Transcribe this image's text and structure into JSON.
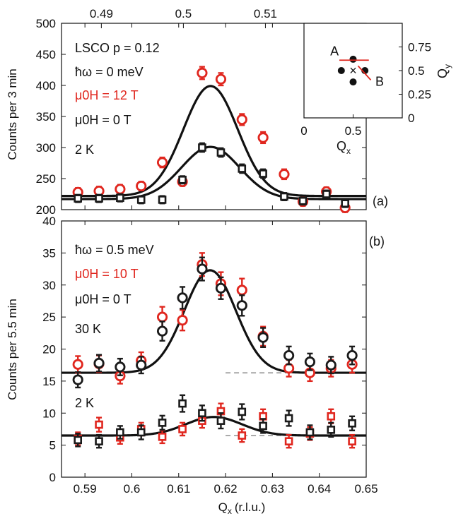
{
  "chart_data": [
    {
      "type": "scatter",
      "panel_label": "(a)",
      "ylabel": "Counts per 3 min",
      "ylim": [
        200,
        500
      ],
      "yticks": [
        200,
        250,
        300,
        350,
        400,
        450,
        500
      ],
      "xlim": [
        0.585,
        0.65
      ],
      "top_axis": {
        "ticks": [
          0.49,
          0.5,
          0.51
        ]
      },
      "annotations": [
        "LSCO p = 0.12",
        "ħω = 0 meV",
        "μ0H = 12 T",
        "μ0H = 0 T",
        "2 K"
      ],
      "series": [
        {
          "name": "μ0H = 12 T",
          "color": "#e0261e",
          "marker": "circle",
          "points": [
            {
              "x": 0.5885,
              "y": 228,
              "err": 7
            },
            {
              "x": 0.593,
              "y": 230,
              "err": 7
            },
            {
              "x": 0.5975,
              "y": 233,
              "err": 7
            },
            {
              "x": 0.602,
              "y": 238,
              "err": 7
            },
            {
              "x": 0.6065,
              "y": 276,
              "err": 8
            },
            {
              "x": 0.6108,
              "y": 245,
              "err": 7
            },
            {
              "x": 0.615,
              "y": 420,
              "err": 10
            },
            {
              "x": 0.619,
              "y": 410,
              "err": 10
            },
            {
              "x": 0.6235,
              "y": 345,
              "err": 9
            },
            {
              "x": 0.628,
              "y": 316,
              "err": 9
            },
            {
              "x": 0.6325,
              "y": 257,
              "err": 8
            },
            {
              "x": 0.6365,
              "y": 213,
              "err": 7
            },
            {
              "x": 0.6415,
              "y": 229,
              "err": 7
            },
            {
              "x": 0.6455,
              "y": 203,
              "err": 7
            }
          ],
          "fit": {
            "baseline": 222,
            "amplitude": 177,
            "center": 0.6168,
            "sigma": 0.0058
          }
        },
        {
          "name": "μ0H = 0 T",
          "color": "#1a1a1a",
          "marker": "square",
          "points": [
            {
              "x": 0.5885,
              "y": 218,
              "err": 6
            },
            {
              "x": 0.593,
              "y": 218,
              "err": 6
            },
            {
              "x": 0.5975,
              "y": 219,
              "err": 6
            },
            {
              "x": 0.602,
              "y": 216,
              "err": 6
            },
            {
              "x": 0.6065,
              "y": 216,
              "err": 6
            },
            {
              "x": 0.6108,
              "y": 248,
              "err": 6
            },
            {
              "x": 0.615,
              "y": 300,
              "err": 7
            },
            {
              "x": 0.619,
              "y": 292,
              "err": 7
            },
            {
              "x": 0.6235,
              "y": 266,
              "err": 7
            },
            {
              "x": 0.628,
              "y": 258,
              "err": 7
            },
            {
              "x": 0.6325,
              "y": 221,
              "err": 6
            },
            {
              "x": 0.6365,
              "y": 214,
              "err": 6
            },
            {
              "x": 0.6415,
              "y": 225,
              "err": 6
            },
            {
              "x": 0.6455,
              "y": 210,
              "err": 6
            }
          ],
          "fit": {
            "baseline": 217,
            "amplitude": 84,
            "center": 0.6168,
            "sigma": 0.0062
          }
        }
      ]
    },
    {
      "type": "scatter",
      "panel_label": "(b)",
      "ylabel": "Counts per 5.5 min",
      "xlabel": "Q",
      "xlabel_sub": "x",
      "xlabel_unit": "(r.l.u.)",
      "ylim": [
        0,
        40
      ],
      "yticks": [
        0,
        5,
        10,
        15,
        20,
        25,
        30,
        35,
        40
      ],
      "xlim": [
        0.585,
        0.65
      ],
      "xticks": [
        0.59,
        0.6,
        0.61,
        0.62,
        0.63,
        0.64,
        0.65
      ],
      "annotations": [
        "ħω = 0.5 meV",
        "μ0H = 10 T",
        "μ0H = 0 T",
        "30 K",
        "2 K"
      ],
      "reference_lines": [
        16.3,
        6.5
      ],
      "series": [
        {
          "name": "μ0H = 10 T, 30 K",
          "color": "#e0261e",
          "marker": "circle",
          "points": [
            {
              "x": 0.5885,
              "y": 17.6,
              "err": 1.3
            },
            {
              "x": 0.593,
              "y": 17.7,
              "err": 1.3
            },
            {
              "x": 0.5975,
              "y": 15.8,
              "err": 1.2
            },
            {
              "x": 0.602,
              "y": 18.2,
              "err": 1.3
            },
            {
              "x": 0.6065,
              "y": 25.0,
              "err": 1.6
            },
            {
              "x": 0.6108,
              "y": 24.5,
              "err": 1.6
            },
            {
              "x": 0.615,
              "y": 33.2,
              "err": 1.8
            },
            {
              "x": 0.619,
              "y": 30.2,
              "err": 1.8
            },
            {
              "x": 0.6235,
              "y": 29.2,
              "err": 1.8
            },
            {
              "x": 0.628,
              "y": 22.0,
              "err": 1.5
            },
            {
              "x": 0.6335,
              "y": 17.0,
              "err": 1.3
            },
            {
              "x": 0.638,
              "y": 16.3,
              "err": 1.3
            },
            {
              "x": 0.6425,
              "y": 17.0,
              "err": 1.3
            },
            {
              "x": 0.647,
              "y": 17.6,
              "err": 1.3
            }
          ]
        },
        {
          "name": "μ0H = 0 T, 30 K",
          "color": "#1a1a1a",
          "marker": "circle",
          "points": [
            {
              "x": 0.5885,
              "y": 15.2,
              "err": 1.2
            },
            {
              "x": 0.593,
              "y": 17.8,
              "err": 1.3
            },
            {
              "x": 0.5975,
              "y": 17.2,
              "err": 1.3
            },
            {
              "x": 0.602,
              "y": 17.5,
              "err": 1.3
            },
            {
              "x": 0.6065,
              "y": 22.8,
              "err": 1.5
            },
            {
              "x": 0.6108,
              "y": 28.0,
              "err": 1.7
            },
            {
              "x": 0.615,
              "y": 32.5,
              "err": 1.8
            },
            {
              "x": 0.619,
              "y": 29.5,
              "err": 1.7
            },
            {
              "x": 0.6235,
              "y": 26.8,
              "err": 1.6
            },
            {
              "x": 0.628,
              "y": 21.8,
              "err": 1.5
            },
            {
              "x": 0.6335,
              "y": 19.0,
              "err": 1.4
            },
            {
              "x": 0.638,
              "y": 18.0,
              "err": 1.3
            },
            {
              "x": 0.6425,
              "y": 17.5,
              "err": 1.3
            },
            {
              "x": 0.647,
              "y": 19.0,
              "err": 1.4
            }
          ],
          "fit": {
            "baseline": 16.3,
            "amplitude": 16.0,
            "center": 0.6167,
            "sigma": 0.0055
          }
        },
        {
          "name": "μ0H = 10 T, 2 K",
          "color": "#e0261e",
          "marker": "square",
          "points": [
            {
              "x": 0.5885,
              "y": 6.0,
              "err": 1.0
            },
            {
              "x": 0.593,
              "y": 8.2,
              "err": 1.1
            },
            {
              "x": 0.5975,
              "y": 6.2,
              "err": 1.0
            },
            {
              "x": 0.602,
              "y": 7.5,
              "err": 1.0
            },
            {
              "x": 0.6065,
              "y": 6.3,
              "err": 1.0
            },
            {
              "x": 0.6108,
              "y": 7.5,
              "err": 1.0
            },
            {
              "x": 0.615,
              "y": 8.8,
              "err": 1.1
            },
            {
              "x": 0.619,
              "y": 10.3,
              "err": 1.2
            },
            {
              "x": 0.6235,
              "y": 6.5,
              "err": 1.0
            },
            {
              "x": 0.628,
              "y": 9.5,
              "err": 1.1
            },
            {
              "x": 0.6335,
              "y": 5.6,
              "err": 1.0
            },
            {
              "x": 0.638,
              "y": 6.8,
              "err": 1.0
            },
            {
              "x": 0.6425,
              "y": 9.5,
              "err": 1.1
            },
            {
              "x": 0.647,
              "y": 5.6,
              "err": 1.0
            }
          ]
        },
        {
          "name": "μ0H = 0 T, 2 K",
          "color": "#1a1a1a",
          "marker": "square",
          "points": [
            {
              "x": 0.5885,
              "y": 5.8,
              "err": 1.0
            },
            {
              "x": 0.593,
              "y": 5.6,
              "err": 1.0
            },
            {
              "x": 0.5975,
              "y": 7.0,
              "err": 1.0
            },
            {
              "x": 0.602,
              "y": 7.0,
              "err": 1.1
            },
            {
              "x": 0.6065,
              "y": 8.5,
              "err": 1.1
            },
            {
              "x": 0.6108,
              "y": 11.5,
              "err": 1.3
            },
            {
              "x": 0.615,
              "y": 10.0,
              "err": 1.2
            },
            {
              "x": 0.619,
              "y": 8.8,
              "err": 1.2
            },
            {
              "x": 0.6235,
              "y": 10.2,
              "err": 1.2
            },
            {
              "x": 0.628,
              "y": 8.0,
              "err": 1.1
            },
            {
              "x": 0.6335,
              "y": 9.2,
              "err": 1.2
            },
            {
              "x": 0.638,
              "y": 7.0,
              "err": 1.1
            },
            {
              "x": 0.6425,
              "y": 7.4,
              "err": 1.1
            },
            {
              "x": 0.647,
              "y": 8.4,
              "err": 1.1
            }
          ],
          "fit": {
            "baseline": 6.5,
            "amplitude": 2.9,
            "center": 0.6175,
            "sigma": 0.006
          }
        }
      ]
    }
  ],
  "inset": {
    "xlabel": "Q",
    "xlabel_sub": "x",
    "ylabel": "Q",
    "ylabel_sub": "y",
    "xticks": [
      0,
      0.5
    ],
    "yticks": [
      0,
      0.25,
      0.5,
      0.75
    ],
    "label_a": "A",
    "label_b": "B",
    "center_mark": "×",
    "spots": [
      [
        0.5,
        0.62
      ],
      [
        0.38,
        0.5
      ],
      [
        0.62,
        0.5
      ],
      [
        0.5,
        0.38
      ]
    ]
  }
}
